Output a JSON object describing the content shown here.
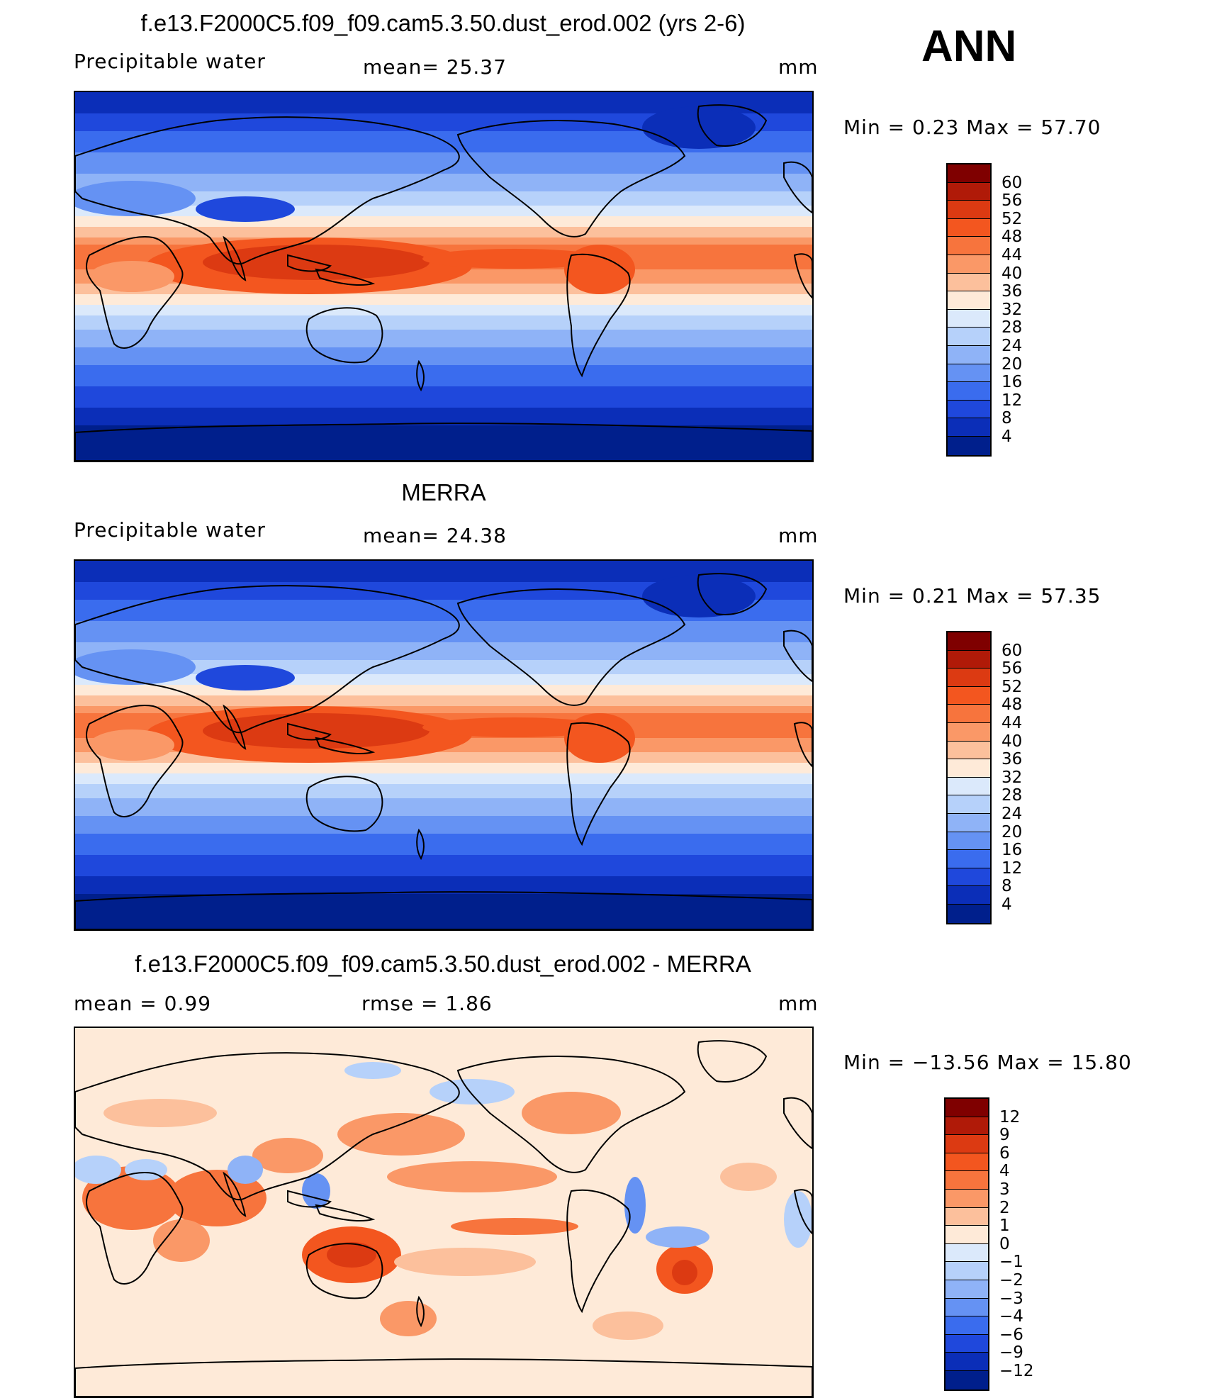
{
  "season": "ANN",
  "panels": [
    {
      "title": "f.e13.F2000C5.f09_f09.cam5.3.50.dust_erod.002 (yrs 2-6)",
      "left_label": "Precipitable  water",
      "center_label": "mean=   25.37",
      "units": "mm",
      "minmax": "Min  =    0.23  Max  =   57.70",
      "colorbar": {
        "labels": [
          "60",
          "56",
          "52",
          "48",
          "44",
          "40",
          "36",
          "32",
          "28",
          "24",
          "20",
          "16",
          "12",
          "8",
          "4"
        ],
        "colors": [
          "#7f0000",
          "#b01a08",
          "#dc3a12",
          "#f3561f",
          "#f7743d",
          "#fa9867",
          "#fcc09c",
          "#feead8",
          "#dbe9fb",
          "#b6d1fa",
          "#8fb3f7",
          "#6592f3",
          "#3a6cee",
          "#1f48dc",
          "#0b2eb8",
          "#001f8c"
        ]
      },
      "map_type": "precip"
    },
    {
      "title": "MERRA",
      "left_label": "Precipitable  water",
      "center_label": "mean=   24.38",
      "units": "mm",
      "minmax": "Min  =    0.21  Max  =   57.35",
      "colorbar": {
        "labels": [
          "60",
          "56",
          "52",
          "48",
          "44",
          "40",
          "36",
          "32",
          "28",
          "24",
          "20",
          "16",
          "12",
          "8",
          "4"
        ],
        "colors": [
          "#7f0000",
          "#b01a08",
          "#dc3a12",
          "#f3561f",
          "#f7743d",
          "#fa9867",
          "#fcc09c",
          "#feead8",
          "#dbe9fb",
          "#b6d1fa",
          "#8fb3f7",
          "#6592f3",
          "#3a6cee",
          "#1f48dc",
          "#0b2eb8",
          "#001f8c"
        ]
      },
      "map_type": "precip"
    },
    {
      "title": "f.e13.F2000C5.f09_f09.cam5.3.50.dust_erod.002 - MERRA",
      "left_label": "mean  =      0.99",
      "center_label": "rmse  =      1.86",
      "units": "mm",
      "minmax": "Min  = −13.56  Max  =   15.80",
      "colorbar": {
        "labels": [
          "12",
          "9",
          "6",
          "4",
          "3",
          "2",
          "1",
          "0",
          "−1",
          "−2",
          "−3",
          "−4",
          "−6",
          "−9",
          "−12"
        ],
        "colors": [
          "#7f0000",
          "#b01a08",
          "#dc3a12",
          "#f3561f",
          "#f7743d",
          "#fa9867",
          "#fcc09c",
          "#feead8",
          "#dbe9fb",
          "#b6d1fa",
          "#8fb3f7",
          "#6592f3",
          "#3a6cee",
          "#1f48dc",
          "#0b2eb8",
          "#001f8c"
        ]
      },
      "map_type": "diff"
    }
  ]
}
